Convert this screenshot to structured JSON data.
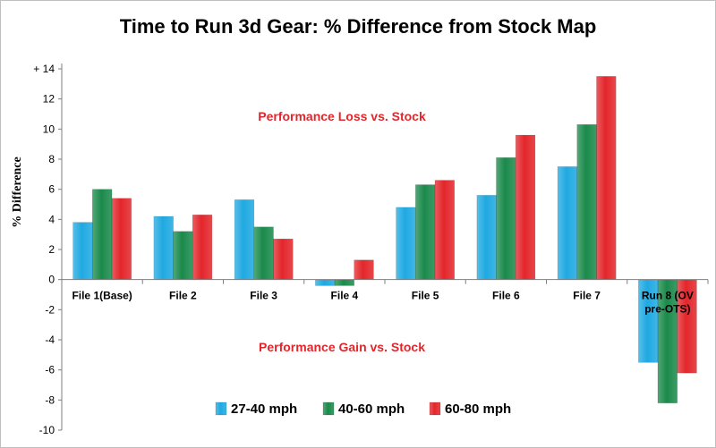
{
  "chart_data": {
    "type": "bar",
    "title": "Time to Run 3d Gear: % Difference from Stock Map",
    "xlabel": "",
    "ylabel": "% Difference",
    "ylim": [
      -10,
      14
    ],
    "yticks": [
      "+ 14",
      "12",
      "10",
      "8",
      "6",
      "4",
      "2",
      "0",
      "-2",
      "-4",
      "-6",
      "-8",
      "-10"
    ],
    "categories": [
      "File 1(Base)",
      "File 2",
      "File 3",
      "File 4",
      "File 5",
      "File 6",
      "File 7",
      "Run 8 (OV pre-OTS)"
    ],
    "series": [
      {
        "name": "27-40 mph",
        "color": "#1fa9e1",
        "values": [
          3.8,
          4.2,
          5.3,
          -0.4,
          4.8,
          5.6,
          7.5,
          -5.5
        ]
      },
      {
        "name": "40-60 mph",
        "color": "#1a8a4b",
        "values": [
          6.0,
          3.2,
          3.5,
          -0.4,
          6.3,
          8.1,
          10.3,
          -8.2
        ]
      },
      {
        "name": "60-80 mph",
        "color": "#e3262b",
        "values": [
          5.4,
          4.3,
          2.7,
          1.3,
          6.6,
          9.6,
          13.5,
          -6.2
        ]
      }
    ],
    "annotations": {
      "loss": "Performance Loss vs. Stock",
      "gain": "Performance Gain vs. Stock"
    },
    "grid": false,
    "legend": "bottom-center"
  }
}
